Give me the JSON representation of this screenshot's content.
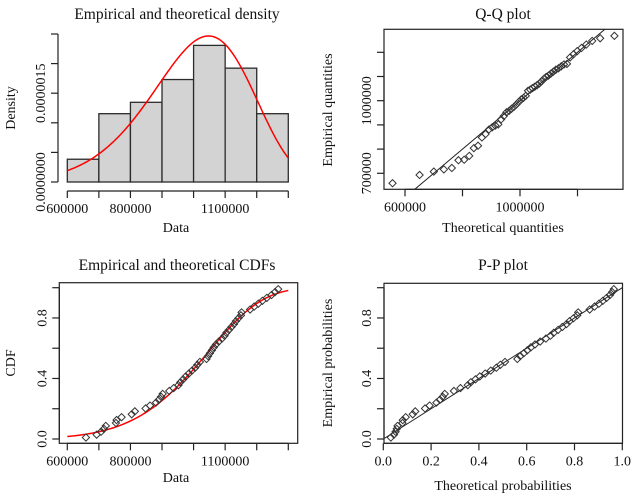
{
  "colors": {
    "theoretical_curve": "#ff0000",
    "histogram_fill": "#d3d3d3",
    "points": "#333333",
    "reference_line": "#222222"
  },
  "chart_data": [
    {
      "id": "density",
      "type": "bar",
      "title": "Empirical and theoretical density",
      "xlabel": "Data",
      "ylabel": "Density",
      "bin_edges": [
        600000,
        700000,
        800000,
        900000,
        1000000,
        1100000,
        1200000,
        1300000
      ],
      "values": [
        3.846e-07,
        1.1538e-06,
        1.3462e-06,
        1.7308e-06,
        2.3077e-06,
        1.9231e-06,
        1.1538e-06
      ],
      "counts": [
        2,
        6,
        7,
        9,
        12,
        10,
        6
      ],
      "xlim": [
        600000,
        1300000
      ],
      "ylim": [
        0,
        2.5e-06
      ],
      "x_ticks": [
        600000,
        700000,
        800000,
        900000,
        1000000,
        1100000,
        1200000,
        1300000
      ],
      "x_tick_labels": [
        "600000",
        "",
        "800000",
        "",
        "",
        "1100000",
        "",
        ""
      ],
      "y_ticks": [
        0,
        5e-07,
        1e-06,
        1.5e-06,
        2e-06,
        2.5e-06
      ],
      "y_tick_labels": [
        "0.0000000",
        "",
        "",
        "0.0000015",
        "",
        ""
      ],
      "theoretical": {
        "distribution": "weibull",
        "shape": 7.1,
        "scale": 1070000
      },
      "grid": false,
      "legend": "none"
    },
    {
      "id": "qq",
      "type": "scatter",
      "title": "Q-Q plot",
      "xlabel": "Theoretical quantities",
      "ylabel": "Empirical quantities",
      "xlim": [
        523000,
        1352000
      ],
      "ylim": [
        634000,
        1297000
      ],
      "x_ticks": [
        600000,
        800000,
        1000000,
        1200000
      ],
      "x_tick_labels": [
        "600000",
        "",
        "1000000",
        ""
      ],
      "y_ticks": [
        700000,
        800000,
        900000,
        1000000,
        1100000,
        1200000
      ],
      "y_tick_labels": [
        "700000",
        "",
        "",
        "1000000",
        "",
        ""
      ],
      "reference_line": "y = x",
      "grid": false,
      "legend": "none"
    },
    {
      "id": "cdf",
      "type": "scatter",
      "title": "Empirical and theoretical CDFs",
      "xlabel": "Data",
      "ylabel": "CDF",
      "xlim": [
        576000,
        1331000
      ],
      "ylim": [
        -0.03,
        1.03
      ],
      "x_ticks": [
        600000,
        700000,
        800000,
        900000,
        1000000,
        1100000,
        1200000,
        1300000
      ],
      "x_tick_labels": [
        "600000",
        "",
        "800000",
        "",
        "",
        "1100000",
        "",
        ""
      ],
      "y_ticks": [
        0.0,
        0.2,
        0.4,
        0.6,
        0.8,
        1.0
      ],
      "y_tick_labels": [
        "0.0",
        "",
        "0.4",
        "",
        "0.8",
        ""
      ],
      "grid": false,
      "legend": "none"
    },
    {
      "id": "pp",
      "type": "scatter",
      "title": "P-P plot",
      "xlabel": "Theoretical probabilities",
      "ylabel": "Empirical probabilities",
      "xlim": [
        0,
        1
      ],
      "ylim": [
        -0.03,
        1.03
      ],
      "x_ticks": [
        0.0,
        0.2,
        0.4,
        0.6,
        0.8,
        1.0
      ],
      "x_tick_labels": [
        "0.0",
        "0.2",
        "0.4",
        "0.6",
        "0.8",
        "1.0"
      ],
      "y_ticks": [
        0.0,
        0.2,
        0.4,
        0.6,
        0.8,
        1.0
      ],
      "y_tick_labels": [
        "0.0",
        "",
        "0.4",
        "",
        "0.8",
        ""
      ],
      "reference_line": "y = x",
      "grid": false,
      "legend": "none"
    }
  ],
  "sample": {
    "n": 52,
    "sorted_values": [
      659000,
      693000,
      707000,
      716000,
      722000,
      754000,
      756000,
      772000,
      804000,
      814000,
      848000,
      862000,
      881000,
      890000,
      897000,
      902000,
      923000,
      937000,
      952000,
      958000,
      967000,
      975000,
      985000,
      995000,
      1005000,
      1012000,
      1020000,
      1041000,
      1046000,
      1052000,
      1058000,
      1064000,
      1071000,
      1080000,
      1090000,
      1098000,
      1104000,
      1112000,
      1120000,
      1128000,
      1134000,
      1142000,
      1150000,
      1152000,
      1179000,
      1192000,
      1205000,
      1218000,
      1232000,
      1247000,
      1258000,
      1268000
    ]
  }
}
